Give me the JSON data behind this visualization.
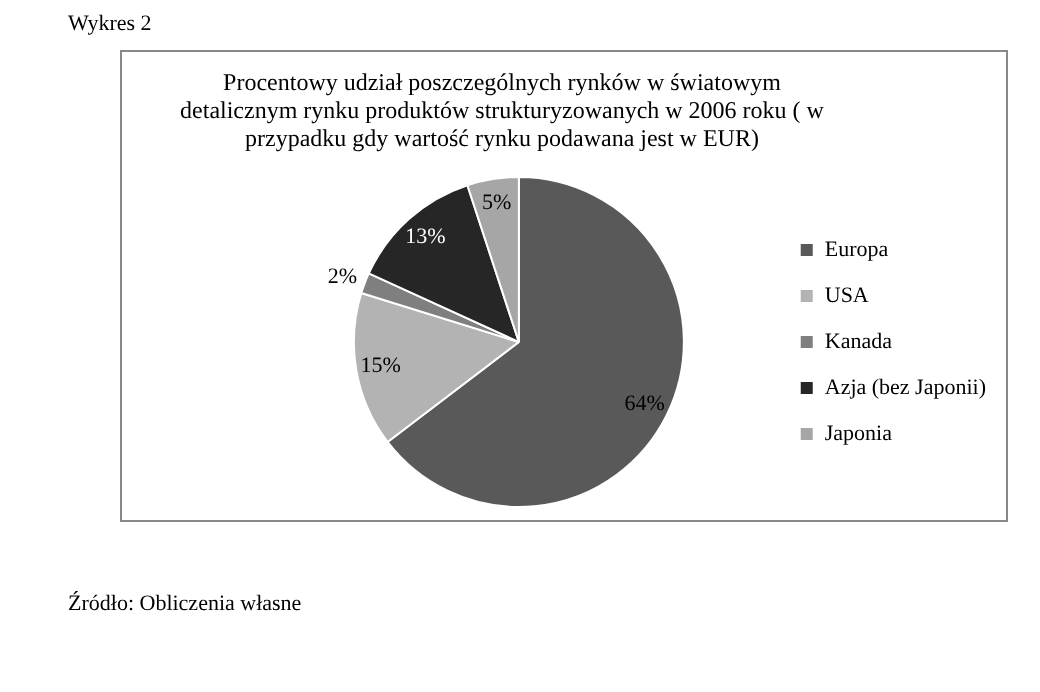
{
  "chart_data": {
    "type": "pie",
    "title": "Procentowy udział poszczególnych rynków w światowym detalicznym rynku produktów strukturyzowanych w 2006 roku ( w przypadku gdy wartość rynku podawana jest w EUR)",
    "categories": [
      "Europa",
      "USA",
      "Kanada",
      "Azja (bez Japonii)",
      "Japonia"
    ],
    "values": [
      64,
      15,
      2,
      13,
      5
    ],
    "colors": [
      "#595959",
      "#b3b3b3",
      "#7f7f7f",
      "#262626",
      "#a6a6a6"
    ],
    "value_labels": [
      "64%",
      "15%",
      "2%",
      "13%",
      "5%"
    ],
    "legend": "right",
    "annotations": [
      "Wykres 2",
      "Źródło: Obliczenia własne"
    ]
  }
}
